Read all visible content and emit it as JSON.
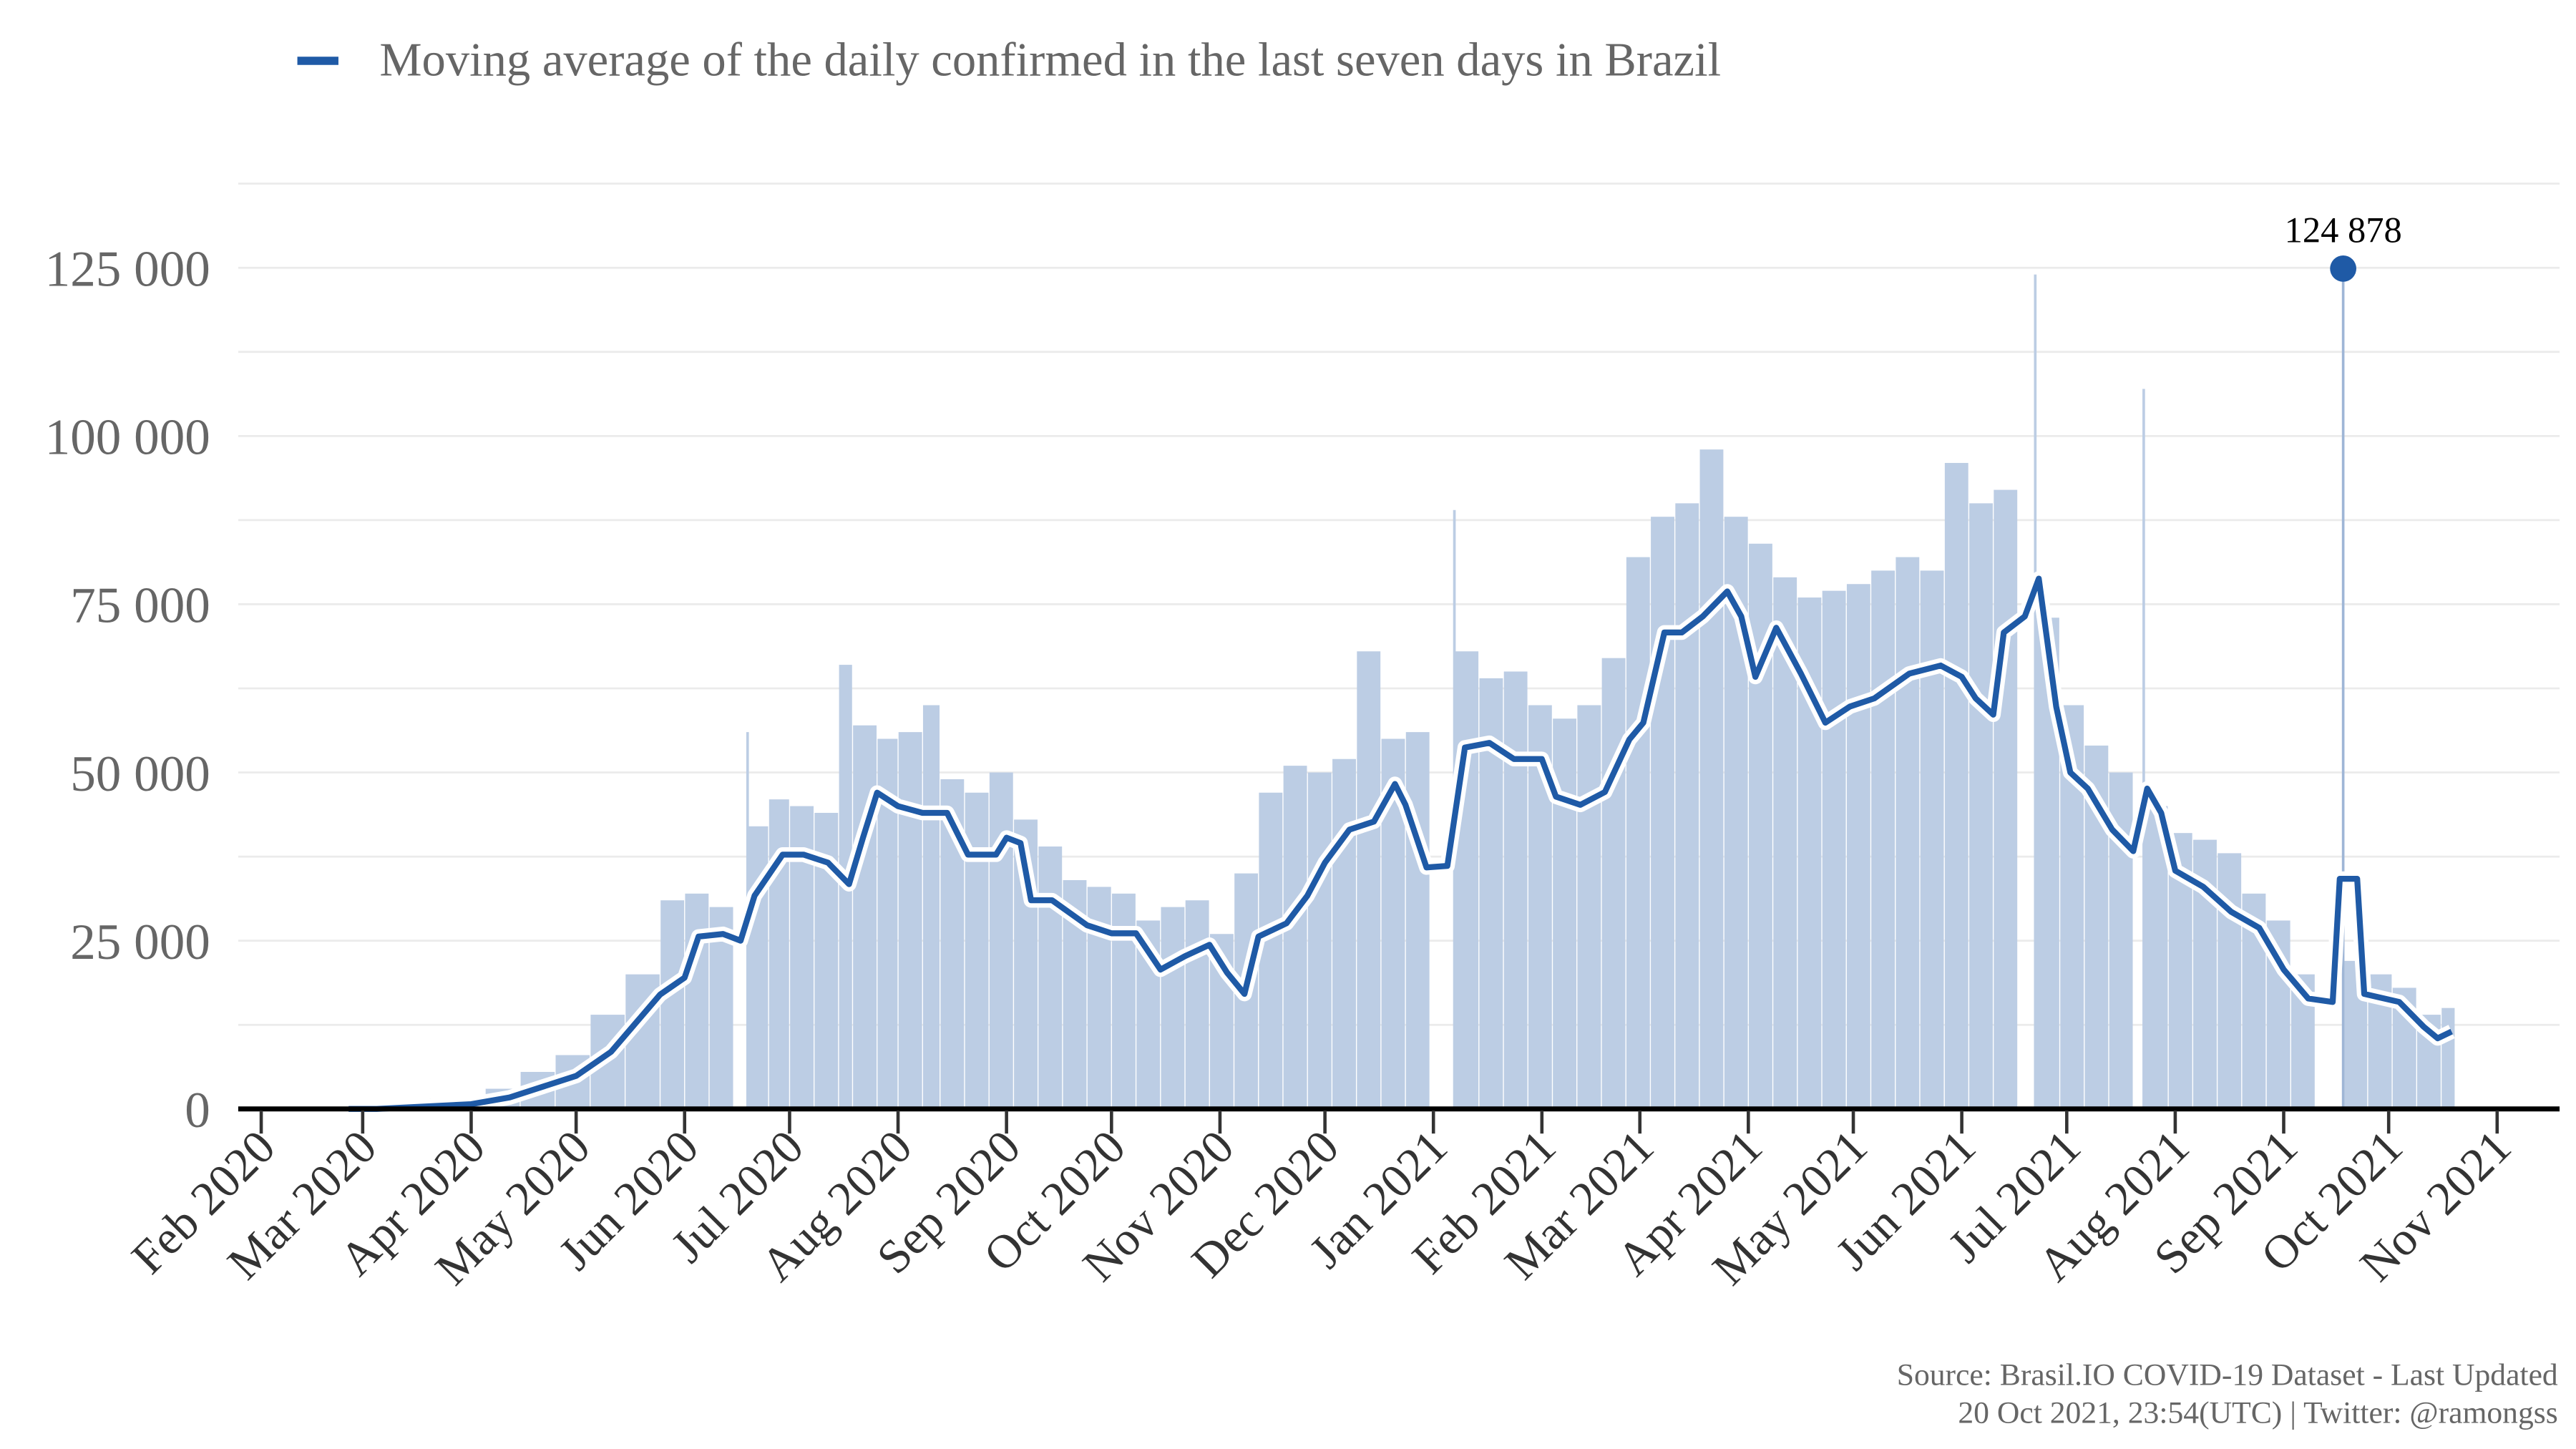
{
  "chart_data": {
    "type": "bar+line",
    "legend": {
      "label": "Moving average of the daily confirmed in the last seven days in Brazil",
      "color": "#1f5aa6",
      "placement": "top-left"
    },
    "source_line1": "Source: Brasil.IO COVID-19 Dataset - Last Updated",
    "source_line2": "20 Oct 2021, 23:54(UTC) | Twitter: @ramongss",
    "y_axis": {
      "ylim": [
        0,
        137500
      ],
      "ticks": [
        0,
        25000,
        50000,
        75000,
        100000,
        125000
      ],
      "tick_labels": [
        "0",
        "25 000",
        "50 000",
        "75 000",
        "100 000",
        "125 000"
      ],
      "minor_grid_step": 12500,
      "grid": true
    },
    "x_axis": {
      "xlim": [
        "2020-01-28",
        "2021-11-08"
      ],
      "ticks": [
        "2020-02-01",
        "2020-03-01",
        "2020-04-01",
        "2020-05-01",
        "2020-06-01",
        "2020-07-01",
        "2020-08-01",
        "2020-09-01",
        "2020-10-01",
        "2020-11-01",
        "2020-12-01",
        "2021-01-01",
        "2021-02-01",
        "2021-03-01",
        "2021-04-01",
        "2021-05-01",
        "2021-06-01",
        "2021-07-01",
        "2021-08-01",
        "2021-09-01",
        "2021-10-01",
        "2021-11-01"
      ],
      "tick_labels": [
        "Feb 2020",
        "Mar 2020",
        "Apr 2020",
        "May 2020",
        "Jun 2020",
        "Jul 2020",
        "Aug 2020",
        "Sep 2020",
        "Oct 2020",
        "Nov 2020",
        "Dec 2020",
        "Jan 2021",
        "Feb 2021",
        "Mar 2021",
        "Apr 2021",
        "May 2021",
        "Jun 2021",
        "Jul 2021",
        "Aug 2021",
        "Sep 2021",
        "Oct 2021",
        "Nov 2021"
      ]
    },
    "annotation": {
      "date": "2021-09-18",
      "value": 124878,
      "label": "124 878"
    },
    "colors": {
      "line": "#1f5aa6",
      "bars": "#bccde4",
      "halo": "#ffffff",
      "grid": "#ebebeb",
      "axis": "#000000"
    },
    "moving_average": [
      [
        "2020-02-26",
        0
      ],
      [
        "2020-03-05",
        0
      ],
      [
        "2020-04-01",
        700
      ],
      [
        "2020-04-12",
        1700
      ],
      [
        "2020-05-01",
        4900
      ],
      [
        "2020-05-11",
        8500
      ],
      [
        "2020-05-25",
        17000
      ],
      [
        "2020-06-01",
        19500
      ],
      [
        "2020-06-05",
        25600
      ],
      [
        "2020-06-12",
        26000
      ],
      [
        "2020-06-17",
        25000
      ],
      [
        "2020-06-21",
        31700
      ],
      [
        "2020-06-29",
        37800
      ],
      [
        "2020-07-05",
        37800
      ],
      [
        "2020-07-12",
        36600
      ],
      [
        "2020-07-18",
        33400
      ],
      [
        "2020-07-22",
        40300
      ],
      [
        "2020-07-26",
        47000
      ],
      [
        "2020-08-01",
        45000
      ],
      [
        "2020-08-08",
        44000
      ],
      [
        "2020-08-15",
        44000
      ],
      [
        "2020-08-21",
        37800
      ],
      [
        "2020-08-29",
        37800
      ],
      [
        "2020-09-01",
        40300
      ],
      [
        "2020-09-05",
        39500
      ],
      [
        "2020-09-08",
        31000
      ],
      [
        "2020-09-14",
        31000
      ],
      [
        "2020-09-24",
        27300
      ],
      [
        "2020-10-01",
        26100
      ],
      [
        "2020-10-08",
        26100
      ],
      [
        "2020-10-15",
        20700
      ],
      [
        "2020-10-22",
        22700
      ],
      [
        "2020-10-29",
        24400
      ],
      [
        "2020-11-03",
        20300
      ],
      [
        "2020-11-08",
        17100
      ],
      [
        "2020-11-12",
        25600
      ],
      [
        "2020-11-20",
        27600
      ],
      [
        "2020-11-26",
        31700
      ],
      [
        "2020-12-01",
        36600
      ],
      [
        "2020-12-08",
        41500
      ],
      [
        "2020-12-15",
        42700
      ],
      [
        "2020-12-21",
        48300
      ],
      [
        "2020-12-24",
        45200
      ],
      [
        "2020-12-30",
        35900
      ],
      [
        "2021-01-05",
        36100
      ],
      [
        "2021-01-10",
        53700
      ],
      [
        "2021-01-17",
        54400
      ],
      [
        "2021-01-24",
        52000
      ],
      [
        "2021-02-01",
        52000
      ],
      [
        "2021-02-05",
        46400
      ],
      [
        "2021-02-12",
        45200
      ],
      [
        "2021-02-19",
        47100
      ],
      [
        "2021-02-26",
        54900
      ],
      [
        "2021-03-02",
        57400
      ],
      [
        "2021-03-08",
        70800
      ],
      [
        "2021-03-13",
        70800
      ],
      [
        "2021-03-19",
        73200
      ],
      [
        "2021-03-26",
        76900
      ],
      [
        "2021-03-30",
        73200
      ],
      [
        "2021-04-03",
        64200
      ],
      [
        "2021-04-09",
        71500
      ],
      [
        "2021-04-16",
        64700
      ],
      [
        "2021-04-23",
        57400
      ],
      [
        "2021-04-30",
        59800
      ],
      [
        "2021-05-07",
        61000
      ],
      [
        "2021-05-17",
        64700
      ],
      [
        "2021-05-26",
        65900
      ],
      [
        "2021-06-01",
        64200
      ],
      [
        "2021-06-05",
        61000
      ],
      [
        "2021-06-10",
        58600
      ],
      [
        "2021-06-13",
        70800
      ],
      [
        "2021-06-19",
        73200
      ],
      [
        "2021-06-23",
        78800
      ],
      [
        "2021-06-28",
        59800
      ],
      [
        "2021-07-02",
        50000
      ],
      [
        "2021-07-07",
        47600
      ],
      [
        "2021-07-14",
        41500
      ],
      [
        "2021-07-20",
        38300
      ],
      [
        "2021-07-24",
        47600
      ],
      [
        "2021-07-28",
        44000
      ],
      [
        "2021-08-01",
        35400
      ],
      [
        "2021-08-09",
        33000
      ],
      [
        "2021-08-17",
        29300
      ],
      [
        "2021-08-25",
        26900
      ],
      [
        "2021-09-01",
        20700
      ],
      [
        "2021-09-08",
        16400
      ],
      [
        "2021-09-15",
        15900
      ],
      [
        "2021-09-17",
        34200
      ],
      [
        "2021-09-22",
        34200
      ],
      [
        "2021-09-24",
        17100
      ],
      [
        "2021-10-04",
        15900
      ],
      [
        "2021-10-11",
        12200
      ],
      [
        "2021-10-15",
        10500
      ],
      [
        "2021-10-19",
        11500
      ]
    ],
    "daily_confirmed": [
      [
        "2020-03-20",
        400
      ],
      [
        "2020-04-05",
        1500
      ],
      [
        "2020-04-15",
        3000
      ],
      [
        "2020-04-25",
        5500
      ],
      [
        "2020-05-05",
        8000
      ],
      [
        "2020-05-15",
        14000
      ],
      [
        "2020-05-25",
        20000
      ],
      [
        "2020-06-01",
        31000
      ],
      [
        "2020-06-08",
        32000
      ],
      [
        "2020-06-15",
        30000
      ],
      [
        "2020-06-19",
        56000
      ],
      [
        "2020-06-25",
        42000
      ],
      [
        "2020-07-01",
        46000
      ],
      [
        "2020-07-08",
        45000
      ],
      [
        "2020-07-15",
        44000
      ],
      [
        "2020-07-19",
        66000
      ],
      [
        "2020-07-26",
        57000
      ],
      [
        "2020-08-01",
        55000
      ],
      [
        "2020-08-08",
        56000
      ],
      [
        "2020-08-13",
        60000
      ],
      [
        "2020-08-20",
        49000
      ],
      [
        "2020-08-27",
        47000
      ],
      [
        "2020-09-03",
        50000
      ],
      [
        "2020-09-10",
        43000
      ],
      [
        "2020-09-17",
        39000
      ],
      [
        "2020-09-24",
        34000
      ],
      [
        "2020-10-01",
        33000
      ],
      [
        "2020-10-08",
        32000
      ],
      [
        "2020-10-15",
        28000
      ],
      [
        "2020-10-22",
        30000
      ],
      [
        "2020-10-29",
        31000
      ],
      [
        "2020-11-05",
        26000
      ],
      [
        "2020-11-12",
        35000
      ],
      [
        "2020-11-19",
        47000
      ],
      [
        "2020-11-26",
        51000
      ],
      [
        "2020-12-03",
        50000
      ],
      [
        "2020-12-10",
        52000
      ],
      [
        "2020-12-17",
        68000
      ],
      [
        "2020-12-24",
        55000
      ],
      [
        "2020-12-31",
        56000
      ],
      [
        "2021-01-07",
        89000
      ],
      [
        "2021-01-14",
        68000
      ],
      [
        "2021-01-21",
        64000
      ],
      [
        "2021-01-28",
        65000
      ],
      [
        "2021-02-04",
        60000
      ],
      [
        "2021-02-11",
        58000
      ],
      [
        "2021-02-18",
        60000
      ],
      [
        "2021-02-25",
        67000
      ],
      [
        "2021-03-04",
        82000
      ],
      [
        "2021-03-11",
        88000
      ],
      [
        "2021-03-18",
        90000
      ],
      [
        "2021-03-25",
        98000
      ],
      [
        "2021-04-01",
        88000
      ],
      [
        "2021-04-08",
        84000
      ],
      [
        "2021-04-15",
        79000
      ],
      [
        "2021-04-22",
        76000
      ],
      [
        "2021-04-29",
        77000
      ],
      [
        "2021-05-06",
        78000
      ],
      [
        "2021-05-13",
        80000
      ],
      [
        "2021-05-20",
        82000
      ],
      [
        "2021-05-27",
        80000
      ],
      [
        "2021-06-03",
        96000
      ],
      [
        "2021-06-10",
        90000
      ],
      [
        "2021-06-17",
        92000
      ],
      [
        "2021-06-22",
        124000
      ],
      [
        "2021-06-29",
        73000
      ],
      [
        "2021-07-06",
        60000
      ],
      [
        "2021-07-13",
        54000
      ],
      [
        "2021-07-20",
        50000
      ],
      [
        "2021-07-23",
        107000
      ],
      [
        "2021-07-30",
        45000
      ],
      [
        "2021-08-06",
        41000
      ],
      [
        "2021-08-13",
        40000
      ],
      [
        "2021-08-20",
        38000
      ],
      [
        "2021-08-27",
        32000
      ],
      [
        "2021-09-03",
        28000
      ],
      [
        "2021-09-10",
        20000
      ],
      [
        "2021-09-18",
        124878
      ],
      [
        "2021-09-25",
        22000
      ],
      [
        "2021-10-02",
        20000
      ],
      [
        "2021-10-09",
        18000
      ],
      [
        "2021-10-16",
        14000
      ],
      [
        "2021-10-20",
        15000
      ]
    ]
  }
}
